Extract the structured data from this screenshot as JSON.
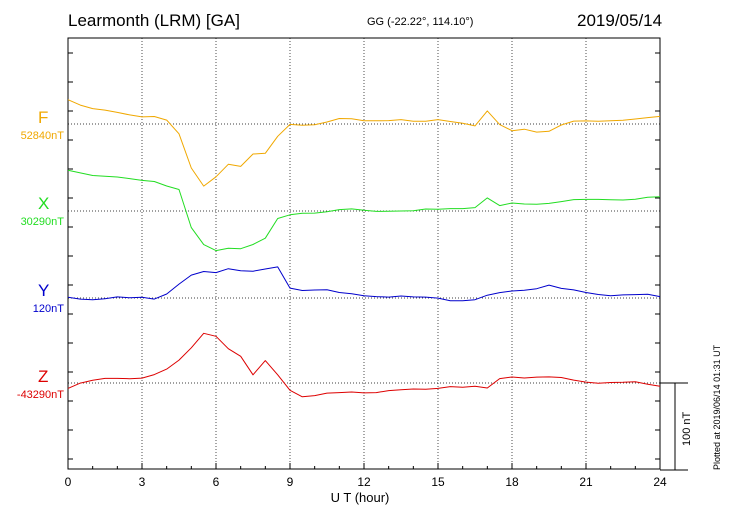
{
  "header": {
    "station": "Learmonth (LRM)  [GA]",
    "coords": "GG (-22.22°, 114.10°)",
    "date": "2019/05/14"
  },
  "plotted_note": "Plotted at 2019/06/14 01:31  UT",
  "scale_bar_label": "100 nT",
  "colors": {
    "F": "#f0a800",
    "X": "#22dd22",
    "Y": "#0000cc",
    "Z": "#dd0000"
  },
  "chart_data": {
    "type": "line",
    "title": "Learmonth (LRM)  [GA]",
    "xlabel": "U T (hour)",
    "ylabel": "",
    "xlim": [
      0,
      24
    ],
    "x_ticks": [
      "0",
      "3",
      "6",
      "9",
      "12",
      "15",
      "18",
      "21",
      "24"
    ],
    "grid": true,
    "scale_nT": 100,
    "x": [
      0,
      0.5,
      1,
      1.5,
      2,
      2.5,
      3,
      3.5,
      4,
      4.5,
      5,
      5.5,
      6,
      6.5,
      7,
      7.5,
      8,
      8.5,
      9,
      9.5,
      10,
      10.5,
      11,
      11.5,
      12,
      12.5,
      13,
      13.5,
      14,
      14.5,
      15,
      15.5,
      16,
      16.5,
      17,
      17.5,
      18,
      18.5,
      19,
      19.5,
      20,
      20.5,
      21,
      21.5,
      22,
      22.5,
      23,
      23.5,
      24
    ],
    "series": [
      {
        "name": "F",
        "baseline_label": "52840nT",
        "values": [
          29,
          23,
          18,
          15,
          12,
          10,
          9,
          10,
          5,
          -12,
          -52,
          -72,
          -60,
          -45,
          -48,
          -35,
          -35,
          -15,
          0,
          0,
          0,
          2,
          5,
          5,
          4,
          5,
          5,
          5,
          2,
          2,
          5,
          4,
          2,
          -2,
          14,
          -2,
          -8,
          -5,
          -8,
          -8,
          -2,
          2,
          3,
          4,
          5,
          5,
          5,
          6,
          8
        ]
      },
      {
        "name": "X",
        "baseline_label": "30290nT",
        "values": [
          47,
          45,
          42,
          40,
          38,
          36,
          35,
          35,
          30,
          25,
          -20,
          -40,
          -46,
          -42,
          -42,
          -38,
          -32,
          -10,
          -5,
          -2,
          -1,
          0,
          1,
          1,
          0,
          0,
          1,
          1,
          0,
          1,
          1,
          3,
          4,
          5,
          15,
          5,
          8,
          8,
          9,
          10,
          11,
          12,
          12,
          13,
          14,
          14,
          14,
          15,
          15
        ]
      },
      {
        "name": "Y",
        "baseline_label": "120nT",
        "values": [
          2,
          0,
          -2,
          -2,
          0,
          0,
          2,
          0,
          5,
          15,
          25,
          30,
          30,
          35,
          32,
          30,
          32,
          35,
          12,
          10,
          10,
          9,
          5,
          4,
          3,
          3,
          2,
          2,
          0,
          0,
          0,
          -2,
          -2,
          -2,
          2,
          5,
          8,
          10,
          12,
          15,
          10,
          8,
          6,
          5,
          4,
          4,
          3,
          3,
          1
        ]
      },
      {
        "name": "Z",
        "baseline_label": "-43290nT",
        "values": [
          -5,
          0,
          2,
          4,
          5,
          6,
          7,
          10,
          15,
          25,
          40,
          58,
          55,
          40,
          30,
          8,
          25,
          10,
          -7,
          -15,
          -15,
          -13,
          -12,
          -10,
          -10,
          -10,
          -9,
          -9,
          -8,
          -7,
          -5,
          -3,
          -5,
          -5,
          -7,
          5,
          8,
          7,
          7,
          6,
          5,
          3,
          2,
          1,
          1,
          0,
          0,
          -2,
          -3
        ]
      }
    ]
  }
}
